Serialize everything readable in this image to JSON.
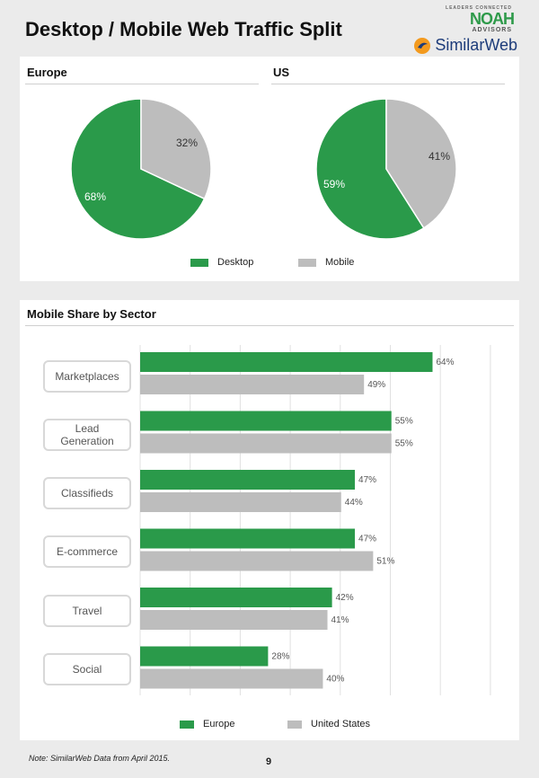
{
  "page": {
    "title": "Desktop / Mobile Web Traffic Split",
    "note": "Note: SimilarWeb Data from April 2015.",
    "page_number": "9"
  },
  "logos": {
    "noah_tagline": "LEADERS CONNECTED",
    "noah_name": "NOAH",
    "noah_sub": "ADVISORS",
    "similarweb": "SimilarWeb"
  },
  "colors": {
    "green": "#2a9a4a",
    "grey": "#bdbdbd",
    "grid": "#e0e0e0"
  },
  "chart_data": [
    {
      "type": "pie",
      "title": "Europe",
      "slices": [
        {
          "label": "Desktop",
          "value": 68
        },
        {
          "label": "Mobile",
          "value": 32
        }
      ],
      "value_labels": [
        "68%",
        "32%"
      ]
    },
    {
      "type": "pie",
      "title": "US",
      "slices": [
        {
          "label": "Desktop",
          "value": 59
        },
        {
          "label": "Mobile",
          "value": 41
        }
      ],
      "value_labels": [
        "59%",
        "41%"
      ],
      "legend": [
        "Desktop",
        "Mobile"
      ]
    },
    {
      "type": "bar",
      "orientation": "horizontal",
      "title": "Mobile Share by Sector",
      "categories": [
        "Marketplaces",
        "Lead\nGeneration",
        "Classifieds",
        "E-commerce",
        "Travel",
        "Social"
      ],
      "series": [
        {
          "name": "Europe",
          "values": [
            64,
            55,
            47,
            47,
            42,
            28
          ],
          "labels": [
            "64%",
            "55%",
            "47%",
            "47%",
            "42%",
            "28%"
          ]
        },
        {
          "name": "United States",
          "values": [
            49,
            55,
            44,
            51,
            41,
            40
          ],
          "labels": [
            "49%",
            "55%",
            "44%",
            "51%",
            "41%",
            "40%"
          ]
        }
      ],
      "xlim": [
        0,
        70
      ],
      "grid": true,
      "legend": "bottom"
    }
  ]
}
